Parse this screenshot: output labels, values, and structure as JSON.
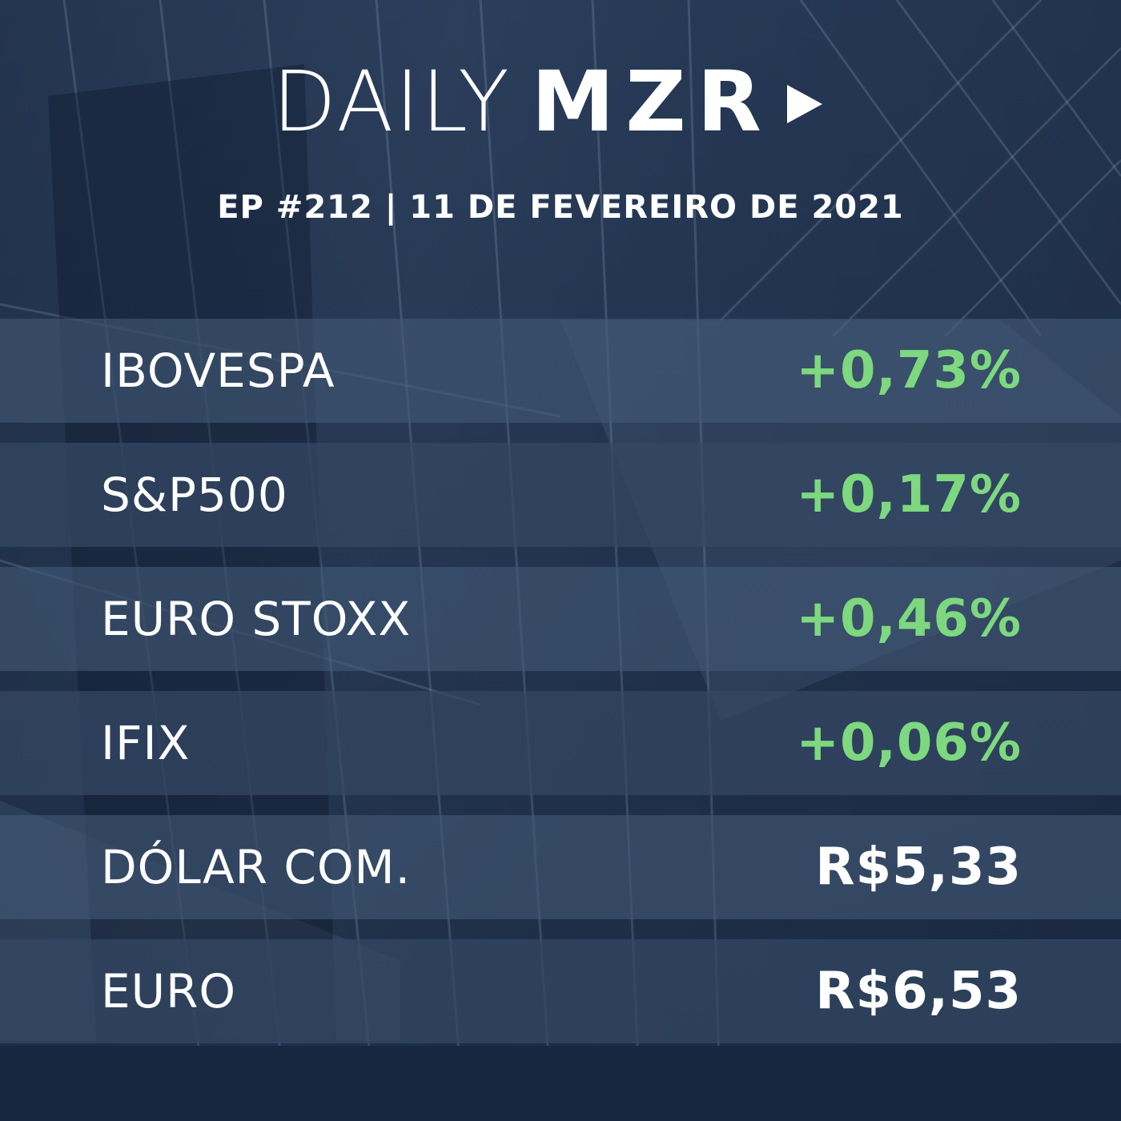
{
  "brand": {
    "thin": "DAILY",
    "bold": "MZR",
    "icon": "play-icon"
  },
  "episode": "EP #212 | 11 DE FEVEREIRO DE 2021",
  "colors": {
    "positive": "#7dd87f",
    "neutral": "#ffffff",
    "background": "#1c2c44"
  },
  "rows": [
    {
      "label": "IBOVESPA",
      "value": "+0,73%",
      "tone": "positive"
    },
    {
      "label": "S&P500",
      "value": "+0,17%",
      "tone": "positive"
    },
    {
      "label": "EURO STOXX",
      "value": "+0,46%",
      "tone": "positive"
    },
    {
      "label": "IFIX",
      "value": "+0,06%",
      "tone": "positive"
    },
    {
      "label": "DÓLAR COM.",
      "value": "R$5,33",
      "tone": "neutral"
    },
    {
      "label": "EURO",
      "value": "R$6,53",
      "tone": "neutral"
    }
  ]
}
